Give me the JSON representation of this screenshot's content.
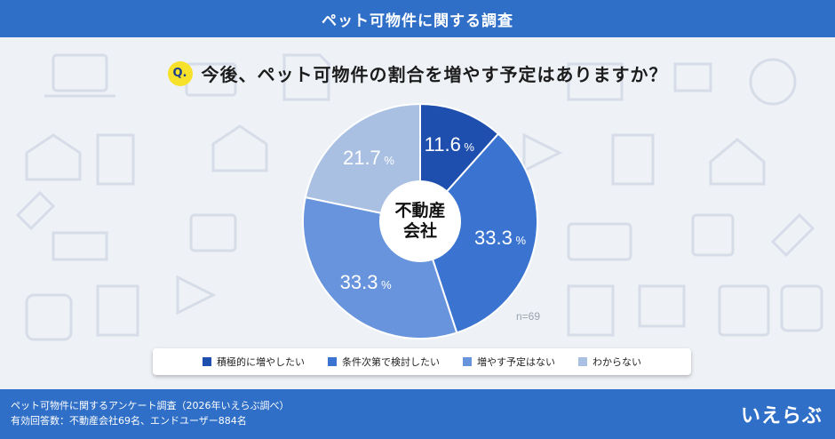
{
  "header": {
    "title": "ペット可物件に関する調査"
  },
  "question": {
    "badge": "Q.",
    "text": "今後、ペット可物件の割合を増やす予定はありますか？"
  },
  "chart_data": {
    "type": "pie",
    "center_label_lines": [
      "不動産",
      "会社"
    ],
    "sample_size": "n=69",
    "unit": "%",
    "slices": [
      {
        "label": "積極的に増やしたい",
        "value": 11.6,
        "display": "11.6",
        "color": "#1f4fae"
      },
      {
        "label": "条件次第で検討したい",
        "value": 33.3,
        "display": "33.3",
        "color": "#3a74d0"
      },
      {
        "label": "増やす予定はない",
        "value": 33.3,
        "display": "33.3",
        "color": "#6794dc"
      },
      {
        "label": "わからない",
        "value": 21.7,
        "display": "21.7",
        "color": "#a9c0e2"
      }
    ]
  },
  "footer": {
    "line1": "ペット可物件に関するアンケート調査（2026年いえらぶ調べ）",
    "line2": "有効回答数：不動産会社69名、エンドユーザー884名",
    "logo": "いえらぶ"
  }
}
